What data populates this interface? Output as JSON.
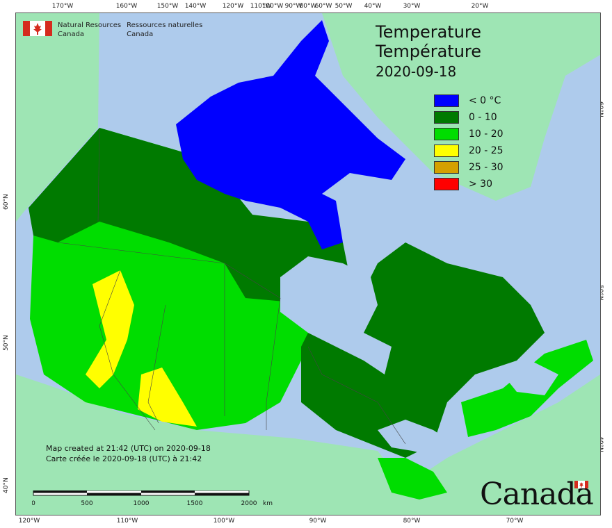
{
  "header": {
    "department_en": "Natural Resources",
    "country_en": "Canada",
    "department_fr": "Ressources naturelles",
    "country_fr": "Canada"
  },
  "title": {
    "line_en": "Temperature",
    "line_fr": "Température",
    "date": "2020-09-18"
  },
  "legend": [
    {
      "label": "< 0 °C",
      "color": "#0000ff"
    },
    {
      "label": "0 - 10",
      "color": "#007a00"
    },
    {
      "label": "10 - 20",
      "color": "#00dd00"
    },
    {
      "label": "20 - 25",
      "color": "#ffff00"
    },
    {
      "label": "25 - 30",
      "color": "#d4a000"
    },
    {
      "label": "> 30",
      "color": "#ff0000"
    }
  ],
  "credit": {
    "en": "Map created at 21:42 (UTC) on 2020-09-18",
    "fr": "Carte créée le 2020-09-18 (UTC) à 21:42"
  },
  "scale": {
    "labels": [
      "0",
      "500",
      "1000",
      "1500",
      "2000"
    ],
    "unit": "km"
  },
  "ticks": {
    "top": [
      "170°W",
      "160°W",
      "150°W",
      "140°W",
      "120°W",
      "110°W",
      "100°W",
      "90°W",
      "80°W",
      "60°W",
      "50°W",
      "40°W",
      "30°W",
      "20°W"
    ],
    "bottom": [
      "120°W",
      "110°W",
      "100°W",
      "90°W",
      "80°W",
      "70°W"
    ],
    "left": [
      "60°N",
      "50°N",
      "40°N"
    ],
    "right": [
      "60°N",
      "50°N",
      "40°N"
    ]
  },
  "wordmark": "Canada",
  "colors": {
    "ocean": "#aecbec",
    "land_other": "#9ee5b4",
    "lake": "#aecbec"
  }
}
